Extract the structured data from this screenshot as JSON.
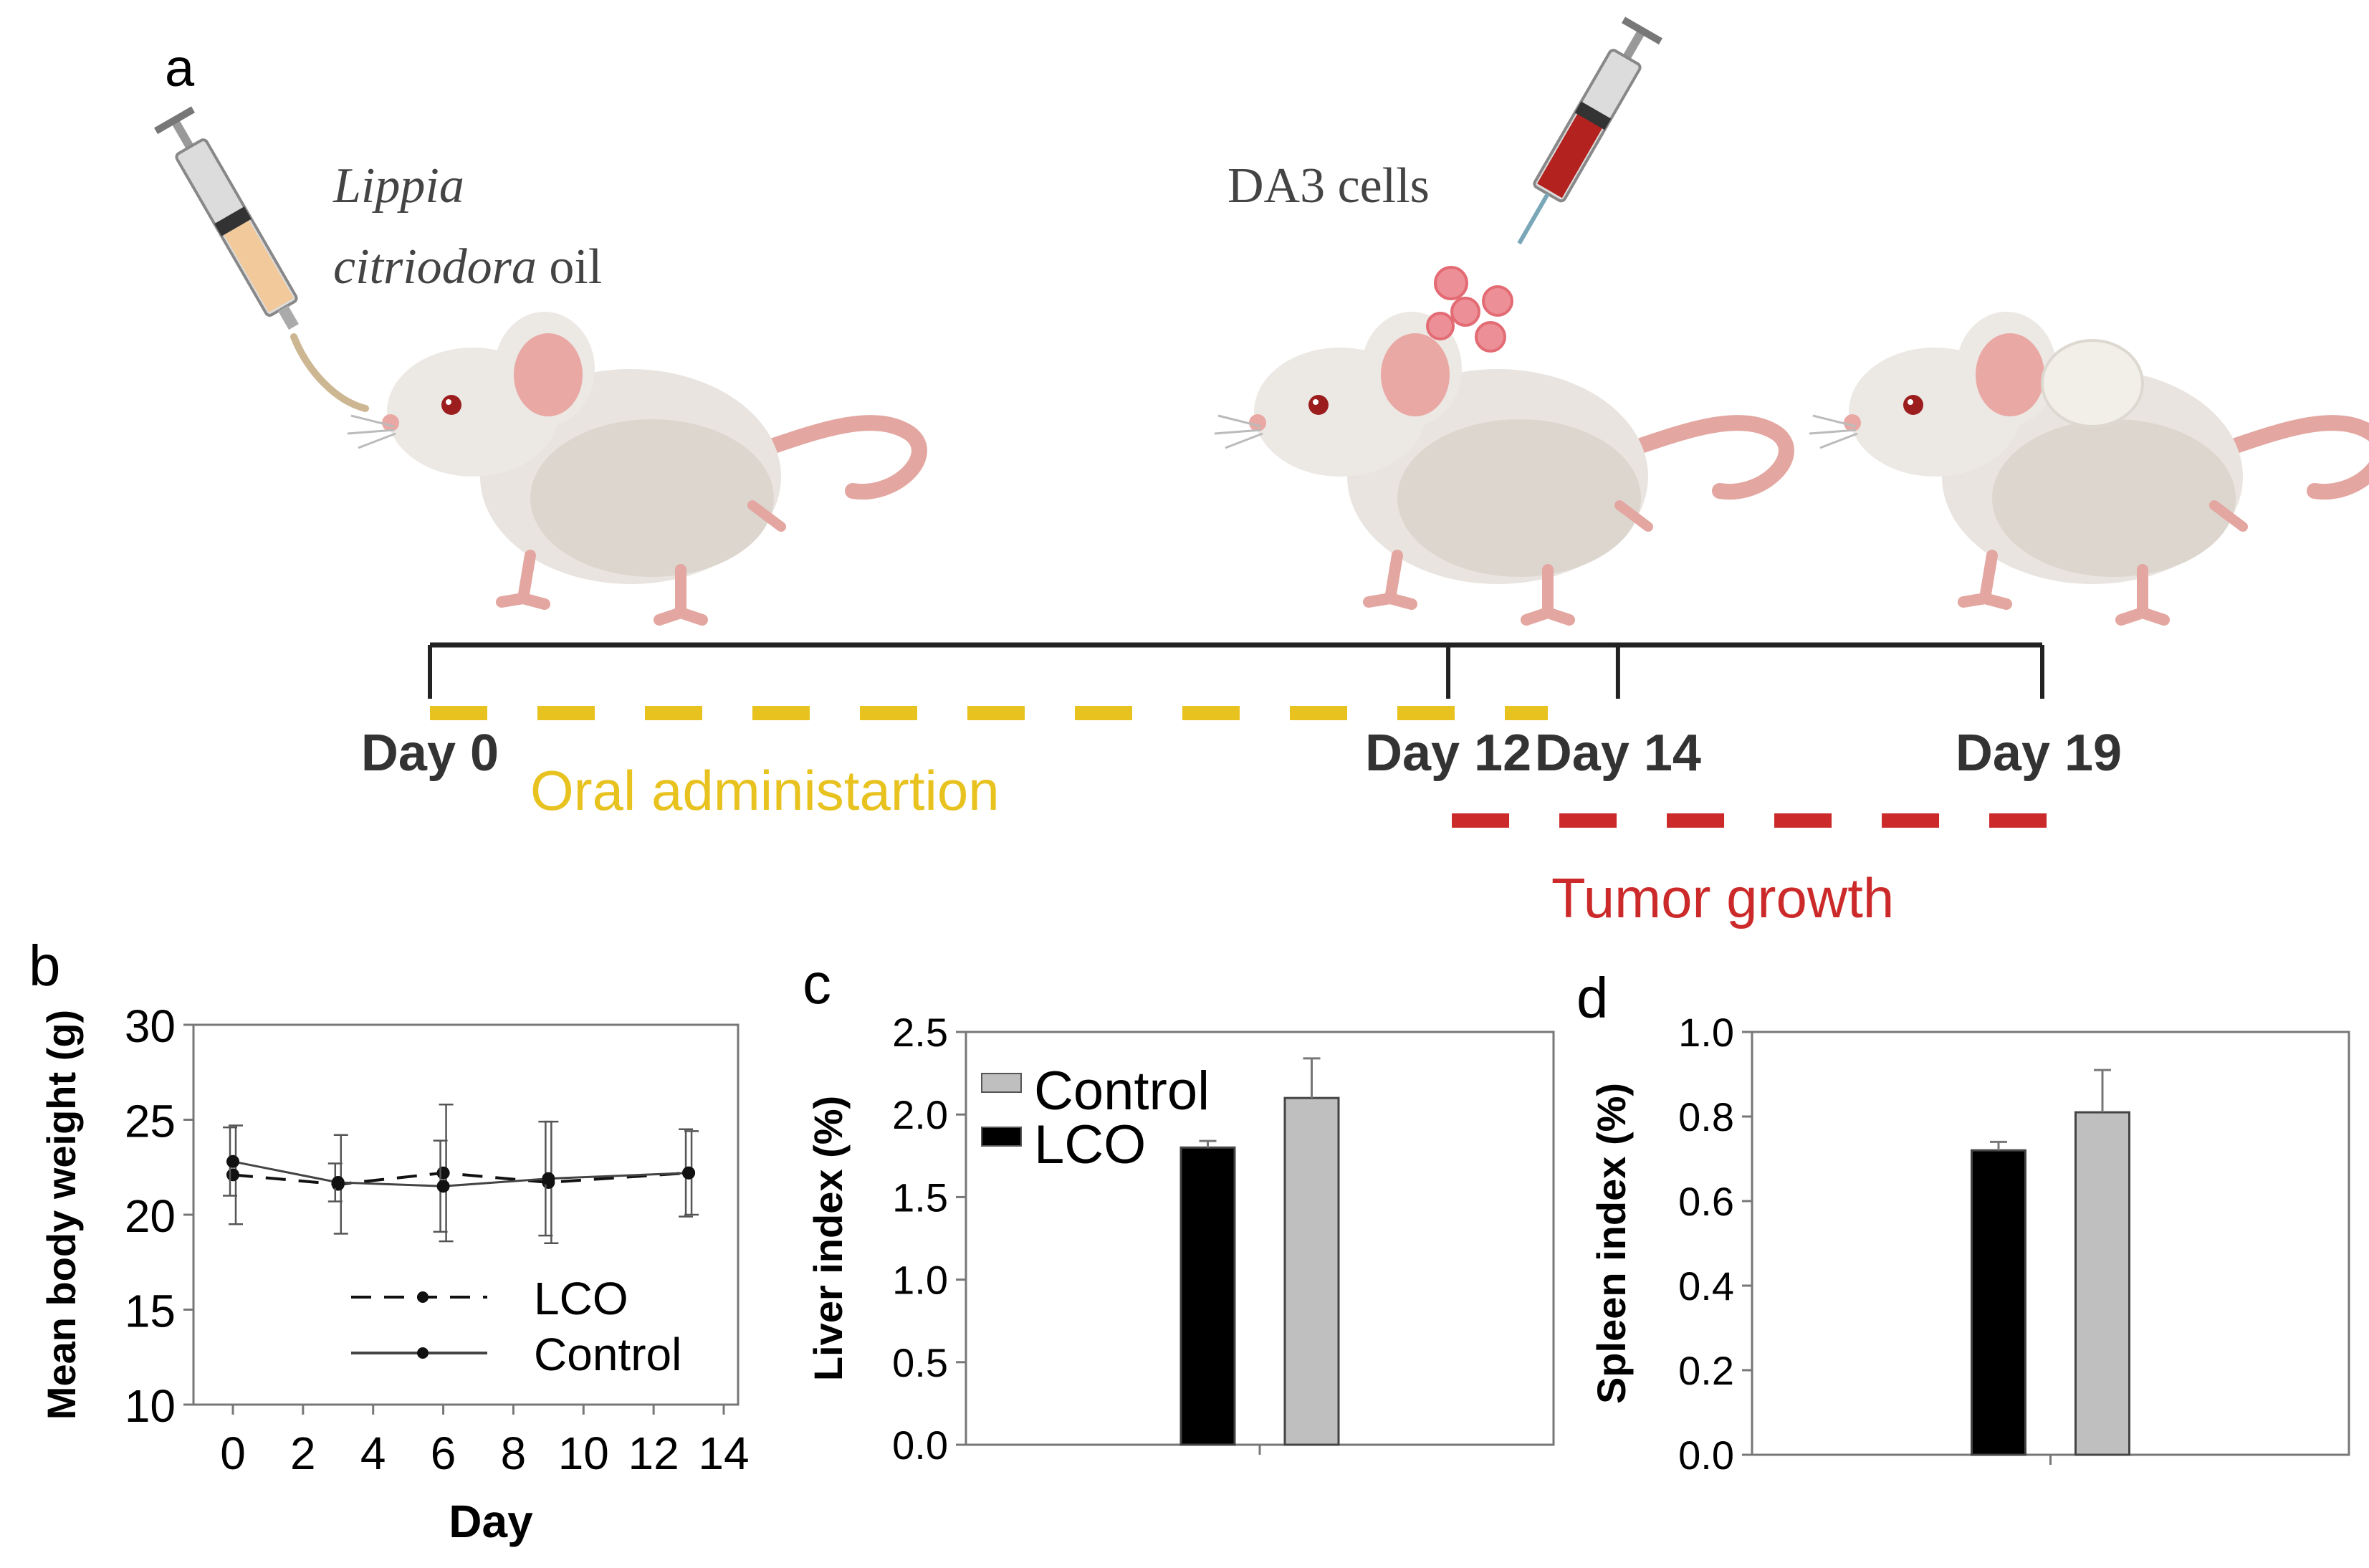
{
  "panel_a": {
    "label": "a",
    "oil_label_line1": "Lippia",
    "oil_label_line2_italic": "citriodora",
    "oil_label_line2_rest": " oil",
    "cells_label": "DA3 cells",
    "timeline": {
      "ticks": [
        {
          "label": "Day 0",
          "day": 0
        },
        {
          "label": "Day 12",
          "day": 12
        },
        {
          "label": "Day 14",
          "day": 14
        },
        {
          "label": "Day 19",
          "day": 19
        }
      ],
      "oral_label": "Oral administartion",
      "tumor_label": "Tumor growth",
      "colors": {
        "oral": "#e8c21e",
        "tumor": "#cc2a2a",
        "axis": "#222222"
      }
    }
  },
  "chart_data": [
    {
      "panel": "b",
      "type": "line",
      "xlabel": "Day",
      "ylabel": "Mean body weight (g)",
      "xlim": [
        0,
        14
      ],
      "ylim": [
        10,
        30
      ],
      "xticks": [
        0,
        2,
        4,
        6,
        8,
        10,
        12,
        14
      ],
      "yticks": [
        10,
        15,
        20,
        25,
        30
      ],
      "series": [
        {
          "name": "LCO",
          "style": "dashed",
          "x": [
            0,
            3,
            6,
            9,
            13
          ],
          "y": [
            22.1,
            21.6,
            22.2,
            21.7,
            22.2
          ],
          "err": [
            2.6,
            2.6,
            3.6,
            3.2,
            2.2
          ]
        },
        {
          "name": "Control",
          "style": "solid",
          "x": [
            0,
            3,
            6,
            9,
            13
          ],
          "y": [
            22.8,
            21.7,
            21.5,
            21.9,
            22.2
          ],
          "err": [
            1.8,
            1.0,
            2.4,
            3.0,
            2.3
          ]
        }
      ]
    },
    {
      "panel": "c",
      "type": "bar",
      "ylabel": "Liver index (%)",
      "ylim": [
        0,
        2.5
      ],
      "yticks": [
        0.0,
        0.5,
        1.0,
        1.5,
        2.0,
        2.5
      ],
      "series": [
        {
          "name": "LCO",
          "value": 1.8,
          "err": 0.04,
          "color": "#000000"
        },
        {
          "name": "Control",
          "value": 2.1,
          "err": 0.24,
          "color": "#bfbfbf"
        }
      ],
      "legend_order": [
        "Control",
        "LCO"
      ]
    },
    {
      "panel": "d",
      "type": "bar",
      "ylabel": "Spleen index (%)",
      "ylim": [
        0,
        1.0
      ],
      "yticks": [
        0.0,
        0.2,
        0.4,
        0.6,
        0.8,
        1.0
      ],
      "series": [
        {
          "name": "LCO",
          "value": 0.72,
          "err": 0.02,
          "color": "#000000"
        },
        {
          "name": "Control",
          "value": 0.81,
          "err": 0.1,
          "color": "#bfbfbf"
        }
      ]
    }
  ]
}
